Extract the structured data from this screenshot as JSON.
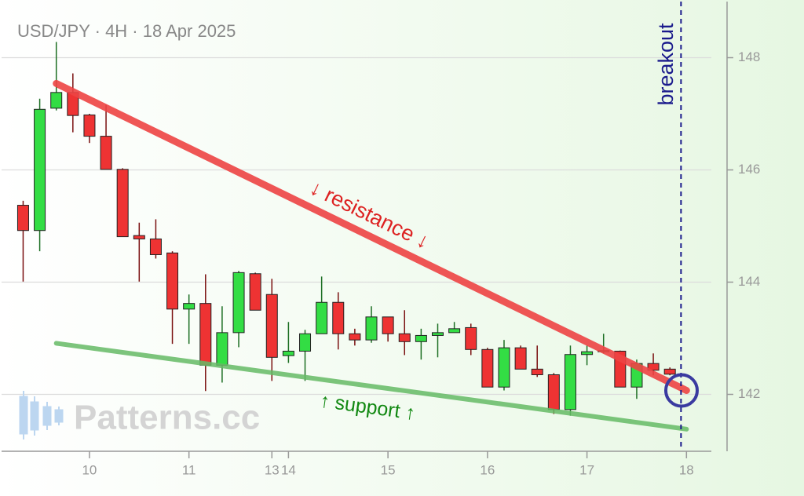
{
  "chart_data": {
    "type": "candlestick",
    "title": "USD/JPY · 4H · 18 Apr 2025",
    "watermark": "Patterns.cc",
    "x": [
      0,
      1,
      2,
      3,
      4,
      5,
      6,
      7,
      8,
      9,
      10,
      11,
      12,
      13,
      14,
      15,
      16,
      17,
      18,
      19,
      20,
      21,
      22,
      23,
      24,
      25,
      26,
      27,
      28,
      29,
      30,
      31,
      32,
      33,
      34,
      35,
      36,
      37,
      38,
      39
    ],
    "open": [
      145.37,
      144.92,
      147.1,
      147.38,
      146.98,
      146.6,
      146.01,
      144.83,
      144.77,
      144.52,
      143.52,
      143.62,
      142.52,
      143.1,
      144.15,
      143.78,
      142.69,
      142.77,
      143.08,
      143.64,
      143.08,
      142.97,
      143.38,
      143.08,
      142.94,
      143.05,
      143.1,
      143.19,
      142.8,
      142.13,
      142.83,
      142.45,
      142.35,
      141.73,
      142.71,
      142.76,
      142.77,
      142.13,
      142.55,
      142.45
    ],
    "high": [
      145.45,
      147.27,
      148.28,
      147.72,
      147.0,
      147.16,
      146.03,
      145.06,
      145.12,
      144.55,
      143.78,
      144.14,
      143.57,
      144.2,
      144.17,
      144.06,
      143.29,
      143.15,
      144.1,
      143.82,
      143.17,
      143.57,
      143.38,
      143.5,
      143.17,
      143.26,
      143.29,
      143.26,
      142.83,
      142.97,
      142.87,
      142.87,
      142.38,
      142.87,
      142.87,
      143.08,
      142.78,
      142.62,
      142.73,
      142.48
    ],
    "low": [
      144.01,
      144.55,
      147.06,
      146.67,
      146.48,
      146.01,
      144.81,
      144.01,
      144.42,
      142.9,
      142.9,
      142.06,
      142.21,
      142.84,
      143.5,
      142.24,
      142.56,
      142.24,
      143.08,
      142.8,
      142.87,
      142.92,
      142.94,
      142.7,
      142.62,
      142.66,
      143.1,
      142.7,
      142.13,
      142.07,
      142.45,
      142.31,
      141.65,
      141.62,
      142.52,
      142.73,
      142.13,
      141.92,
      142.34,
      142.34
    ],
    "close": [
      144.92,
      147.08,
      147.38,
      146.97,
      146.6,
      146.01,
      144.81,
      144.77,
      144.49,
      143.52,
      143.62,
      142.52,
      143.1,
      144.17,
      143.5,
      142.66,
      142.77,
      143.08,
      143.64,
      143.08,
      142.97,
      143.38,
      143.08,
      142.94,
      143.05,
      143.1,
      143.17,
      142.8,
      142.13,
      142.83,
      142.45,
      142.35,
      141.73,
      142.71,
      142.76,
      142.78,
      142.13,
      142.55,
      142.43,
      142.36
    ],
    "up_color": "#33dd44",
    "down_color": "#ee3333",
    "xlim": [
      -1.3,
      41.5
    ],
    "xticks": [
      {
        "value": 4,
        "label": "10"
      },
      {
        "value": 10,
        "label": "11"
      },
      {
        "value": 15,
        "label": "13"
      },
      {
        "value": 16,
        "label": "14"
      },
      {
        "value": 22,
        "label": "15"
      },
      {
        "value": 28,
        "label": "16"
      },
      {
        "value": 34,
        "label": "17"
      },
      {
        "value": 40,
        "label": "18"
      }
    ],
    "ylim": [
      141,
      149
    ],
    "yticks": [
      142,
      144,
      146,
      148
    ],
    "grid": true,
    "resistance": {
      "text": "↓ resistance ↓",
      "color": "#ee4444",
      "points": [
        [
          2,
          147.54
        ],
        [
          40,
          142.07
        ]
      ]
    },
    "support": {
      "text": "↑ support ↑",
      "color": "#66bb66",
      "points": [
        [
          2,
          142.91
        ],
        [
          40,
          141.38
        ]
      ]
    },
    "breakout": {
      "text": "breakout",
      "color": "#1a1a8c",
      "x": 39.67,
      "point": [
        39.7,
        142.07
      ]
    }
  }
}
